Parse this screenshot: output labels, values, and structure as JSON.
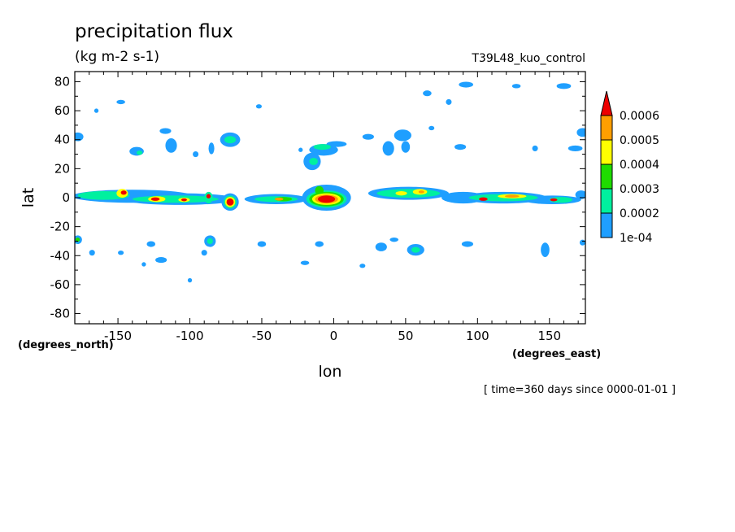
{
  "chart_data": {
    "type": "heatmap",
    "title": "precipitation flux",
    "units": "(kg m-2 s-1)",
    "dataset": "T39L48_kuo_control",
    "xlabel": "lon",
    "ylabel": "lat",
    "x_units_label": "(degrees_east)",
    "y_units_label": "(degrees_north)",
    "time_label": "[ time=360 days since 0000-01-01 ]",
    "xlim": [
      -180,
      175
    ],
    "ylim": [
      -87,
      87
    ],
    "x_ticks": [
      -150,
      -100,
      -50,
      0,
      50,
      100,
      150
    ],
    "x_tick_labels": [
      "-150",
      "-100",
      "-50",
      "0",
      "50",
      "100",
      "150"
    ],
    "y_ticks": [
      80,
      60,
      40,
      20,
      0,
      -20,
      -40,
      -60,
      -80
    ],
    "y_tick_labels": [
      "80",
      "60",
      "40",
      "20",
      "0",
      "-20",
      "-40",
      "-60",
      "-80"
    ],
    "colorbar": {
      "levels": [
        0.0001,
        0.0002,
        0.0003,
        0.0004,
        0.0005,
        0.0006
      ],
      "level_labels": [
        "1e-04",
        "0.0002",
        "0.0003",
        "0.0004",
        "0.0005",
        "0.0006"
      ],
      "colors": [
        "#1f9fff",
        "#00f09f",
        "#1fdc00",
        "#ffff00",
        "#ff9f00",
        "#ee0000"
      ]
    },
    "blobs": [
      {
        "lon": -140,
        "lat": 1,
        "rx": 42,
        "ry": 4.5,
        "level": 1
      },
      {
        "lon": -160,
        "lat": 1.5,
        "rx": 18,
        "ry": 3,
        "level": 2
      },
      {
        "lon": -147,
        "lat": 3,
        "rx": 4,
        "ry": 3,
        "level": 4
      },
      {
        "lon": -146,
        "lat": 3.5,
        "rx": 2,
        "ry": 1.5,
        "level": 6
      },
      {
        "lon": -107,
        "lat": -1,
        "rx": 40,
        "ry": 4,
        "level": 1
      },
      {
        "lon": -110,
        "lat": -1,
        "rx": 30,
        "ry": 2.5,
        "level": 2
      },
      {
        "lon": -123,
        "lat": -1,
        "rx": 6,
        "ry": 2,
        "level": 4
      },
      {
        "lon": -124,
        "lat": -1,
        "rx": 3,
        "ry": 1.2,
        "level": 6
      },
      {
        "lon": -104,
        "lat": -1.5,
        "rx": 4,
        "ry": 1.5,
        "level": 4
      },
      {
        "lon": -104,
        "lat": -1.5,
        "rx": 2,
        "ry": 1,
        "level": 6
      },
      {
        "lon": -87,
        "lat": 0,
        "rx": 3,
        "ry": 4,
        "level": 2
      },
      {
        "lon": -87,
        "lat": 1,
        "rx": 1.5,
        "ry": 1.5,
        "level": 6
      },
      {
        "lon": -72,
        "lat": -3,
        "rx": 6,
        "ry": 6,
        "level": 1
      },
      {
        "lon": -72,
        "lat": -3,
        "rx": 4.5,
        "ry": 4.5,
        "level": 2
      },
      {
        "lon": -72,
        "lat": -3,
        "rx": 3.5,
        "ry": 3.5,
        "level": 4
      },
      {
        "lon": -72,
        "lat": -3,
        "rx": 2.5,
        "ry": 2.5,
        "level": 6
      },
      {
        "lon": -40,
        "lat": -1,
        "rx": 22,
        "ry": 3.5,
        "level": 1
      },
      {
        "lon": -40,
        "lat": -1,
        "rx": 15,
        "ry": 2,
        "level": 2
      },
      {
        "lon": -35,
        "lat": -1,
        "rx": 6,
        "ry": 1.5,
        "level": 3
      },
      {
        "lon": -38,
        "lat": -1,
        "rx": 3,
        "ry": 1,
        "level": 5
      },
      {
        "lon": -5,
        "lat": 0,
        "rx": 17,
        "ry": 9,
        "level": 1
      },
      {
        "lon": -5,
        "lat": -1,
        "rx": 14,
        "ry": 6,
        "level": 2
      },
      {
        "lon": -5,
        "lat": -1,
        "rx": 12,
        "ry": 5,
        "level": 3
      },
      {
        "lon": -5,
        "lat": -1,
        "rx": 10,
        "ry": 4,
        "level": 4
      },
      {
        "lon": -5,
        "lat": -1,
        "rx": 8,
        "ry": 3,
        "level": 5
      },
      {
        "lon": -5,
        "lat": -1,
        "rx": 6,
        "ry": 2.5,
        "level": 6
      },
      {
        "lon": -10,
        "lat": 5,
        "rx": 3,
        "ry": 3,
        "level": 3
      },
      {
        "lon": 52,
        "lat": 3,
        "rx": 28,
        "ry": 4.5,
        "level": 1
      },
      {
        "lon": 52,
        "lat": 3,
        "rx": 22,
        "ry": 3,
        "level": 2
      },
      {
        "lon": 47,
        "lat": 3,
        "rx": 4,
        "ry": 1.5,
        "level": 4
      },
      {
        "lon": 60,
        "lat": 4,
        "rx": 5,
        "ry": 2,
        "level": 4
      },
      {
        "lon": 61,
        "lat": 4,
        "rx": 2,
        "ry": 1,
        "level": 5
      },
      {
        "lon": 90,
        "lat": 0,
        "rx": 15,
        "ry": 4,
        "level": 1
      },
      {
        "lon": 118,
        "lat": 0,
        "rx": 30,
        "ry": 4,
        "level": 1
      },
      {
        "lon": 118,
        "lat": 0,
        "rx": 24,
        "ry": 2.5,
        "level": 2
      },
      {
        "lon": 124,
        "lat": 1,
        "rx": 10,
        "ry": 1.5,
        "level": 4
      },
      {
        "lon": 124,
        "lat": 1,
        "rx": 5,
        "ry": 1,
        "level": 5
      },
      {
        "lon": 104,
        "lat": -1,
        "rx": 3,
        "ry": 1.2,
        "level": 6
      },
      {
        "lon": 152,
        "lat": -1.5,
        "rx": 20,
        "ry": 3,
        "level": 1
      },
      {
        "lon": 158,
        "lat": -1.5,
        "rx": 8,
        "ry": 2,
        "level": 2
      },
      {
        "lon": 153,
        "lat": -1.5,
        "rx": 2.5,
        "ry": 1,
        "level": 6
      },
      {
        "lon": 172,
        "lat": 2,
        "rx": 4,
        "ry": 3,
        "level": 1
      },
      {
        "lon": -178,
        "lat": 42,
        "rx": 4,
        "ry": 3,
        "level": 1
      },
      {
        "lon": -165,
        "lat": 60,
        "rx": 1.5,
        "ry": 1.5,
        "level": 1
      },
      {
        "lon": -148,
        "lat": 66,
        "rx": 3,
        "ry": 1.5,
        "level": 1
      },
      {
        "lon": -137,
        "lat": 32,
        "rx": 5,
        "ry": 3,
        "level": 1
      },
      {
        "lon": -135,
        "lat": 31,
        "rx": 2,
        "ry": 1.5,
        "level": 2
      },
      {
        "lon": -117,
        "lat": 46,
        "rx": 4,
        "ry": 2,
        "level": 1
      },
      {
        "lon": -113,
        "lat": 36,
        "rx": 4,
        "ry": 5,
        "level": 1
      },
      {
        "lon": -96,
        "lat": 30,
        "rx": 2,
        "ry": 2,
        "level": 1
      },
      {
        "lon": -85,
        "lat": 34,
        "rx": 2,
        "ry": 4,
        "level": 1
      },
      {
        "lon": -72,
        "lat": 40,
        "rx": 7,
        "ry": 5,
        "level": 1
      },
      {
        "lon": -72,
        "lat": 40,
        "rx": 4,
        "ry": 2.5,
        "level": 2
      },
      {
        "lon": -52,
        "lat": 63,
        "rx": 2,
        "ry": 1.5,
        "level": 1
      },
      {
        "lon": -23,
        "lat": 33,
        "rx": 1.5,
        "ry": 1.5,
        "level": 1
      },
      {
        "lon": -15,
        "lat": 25,
        "rx": 6,
        "ry": 6,
        "level": 1
      },
      {
        "lon": -14,
        "lat": 25,
        "rx": 3,
        "ry": 2.5,
        "level": 2
      },
      {
        "lon": -7,
        "lat": 33,
        "rx": 10,
        "ry": 4,
        "level": 1
      },
      {
        "lon": -8,
        "lat": 35,
        "rx": 6,
        "ry": 2,
        "level": 2
      },
      {
        "lon": 2,
        "lat": 37,
        "rx": 7,
        "ry": 2,
        "level": 1
      },
      {
        "lon": 24,
        "lat": 42,
        "rx": 4,
        "ry": 2,
        "level": 1
      },
      {
        "lon": 38,
        "lat": 34,
        "rx": 4,
        "ry": 5,
        "level": 1
      },
      {
        "lon": 48,
        "lat": 43,
        "rx": 6,
        "ry": 4,
        "level": 1
      },
      {
        "lon": 50,
        "lat": 35,
        "rx": 3,
        "ry": 4,
        "level": 1
      },
      {
        "lon": 68,
        "lat": 48,
        "rx": 2,
        "ry": 1.5,
        "level": 1
      },
      {
        "lon": 65,
        "lat": 72,
        "rx": 3,
        "ry": 2,
        "level": 1
      },
      {
        "lon": 80,
        "lat": 66,
        "rx": 2,
        "ry": 2,
        "level": 1
      },
      {
        "lon": 92,
        "lat": 78,
        "rx": 5,
        "ry": 2,
        "level": 1
      },
      {
        "lon": 88,
        "lat": 35,
        "rx": 4,
        "ry": 2,
        "level": 1
      },
      {
        "lon": 140,
        "lat": 34,
        "rx": 2,
        "ry": 2,
        "level": 1
      },
      {
        "lon": 160,
        "lat": 77,
        "rx": 5,
        "ry": 2,
        "level": 1
      },
      {
        "lon": 168,
        "lat": 34,
        "rx": 5,
        "ry": 2,
        "level": 1
      },
      {
        "lon": 173,
        "lat": 45,
        "rx": 4,
        "ry": 3,
        "level": 1
      },
      {
        "lon": 127,
        "lat": 77,
        "rx": 3,
        "ry": 1.5,
        "level": 1
      },
      {
        "lon": -178,
        "lat": -29,
        "rx": 3,
        "ry": 3,
        "level": 1
      },
      {
        "lon": -178,
        "lat": -29,
        "rx": 1.5,
        "ry": 1.5,
        "level": 3
      },
      {
        "lon": -168,
        "lat": -38,
        "rx": 2,
        "ry": 2,
        "level": 1
      },
      {
        "lon": -148,
        "lat": -38,
        "rx": 2,
        "ry": 1.5,
        "level": 1
      },
      {
        "lon": -127,
        "lat": -32,
        "rx": 3,
        "ry": 2,
        "level": 1
      },
      {
        "lon": -120,
        "lat": -43,
        "rx": 4,
        "ry": 2,
        "level": 1
      },
      {
        "lon": -86,
        "lat": -30,
        "rx": 4,
        "ry": 4,
        "level": 1
      },
      {
        "lon": -86,
        "lat": -30,
        "rx": 2,
        "ry": 2,
        "level": 2
      },
      {
        "lon": -90,
        "lat": -38,
        "rx": 2,
        "ry": 2,
        "level": 1
      },
      {
        "lon": -50,
        "lat": -32,
        "rx": 3,
        "ry": 2,
        "level": 1
      },
      {
        "lon": -20,
        "lat": -45,
        "rx": 3,
        "ry": 1.5,
        "level": 1
      },
      {
        "lon": -10,
        "lat": -32,
        "rx": 3,
        "ry": 2,
        "level": 1
      },
      {
        "lon": 33,
        "lat": -34,
        "rx": 4,
        "ry": 3,
        "level": 1
      },
      {
        "lon": 42,
        "lat": -29,
        "rx": 3,
        "ry": 1.5,
        "level": 1
      },
      {
        "lon": 57,
        "lat": -36,
        "rx": 6,
        "ry": 4,
        "level": 1
      },
      {
        "lon": 57,
        "lat": -36,
        "rx": 3,
        "ry": 2,
        "level": 2
      },
      {
        "lon": 93,
        "lat": -32,
        "rx": 4,
        "ry": 2,
        "level": 1
      },
      {
        "lon": 147,
        "lat": -36,
        "rx": 3,
        "ry": 5,
        "level": 1
      },
      {
        "lon": 173,
        "lat": -31,
        "rx": 2,
        "ry": 2,
        "level": 1
      },
      {
        "lon": -132,
        "lat": -46,
        "rx": 1.5,
        "ry": 1.5,
        "level": 1
      },
      {
        "lon": -100,
        "lat": -57,
        "rx": 1.5,
        "ry": 1.5,
        "level": 1
      },
      {
        "lon": 20,
        "lat": -47,
        "rx": 2,
        "ry": 1.5,
        "level": 1
      }
    ]
  }
}
